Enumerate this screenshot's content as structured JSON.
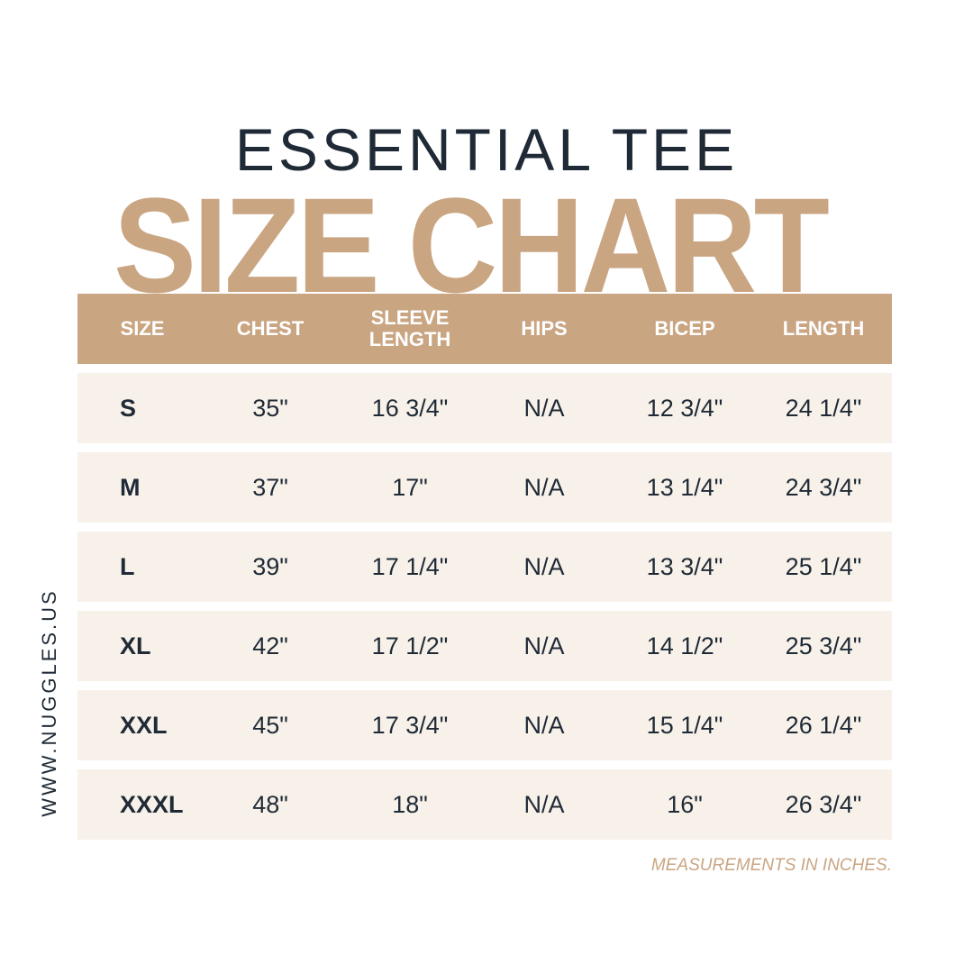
{
  "title": "ESSENTIAL TEE",
  "heading": "SIZE CHART",
  "columns": [
    "SIZE",
    "CHEST",
    "SLEEVE LENGTH",
    "HIPS",
    "BICEP",
    "LENGTH"
  ],
  "rows": [
    [
      "S",
      "35\"",
      "16 3/4\"",
      "N/A",
      "12 3/4\"",
      "24 1/4\""
    ],
    [
      "M",
      "37\"",
      "17\"",
      "N/A",
      "13 1/4\"",
      "24 3/4\""
    ],
    [
      "L",
      "39\"",
      "17 1/4\"",
      "N/A",
      "13 3/4\"",
      "25 1/4\""
    ],
    [
      "XL",
      "42\"",
      "17 1/2\"",
      "N/A",
      "14 1/2\"",
      "25 3/4\""
    ],
    [
      "XXL",
      "45\"",
      "17 3/4\"",
      "N/A",
      "15 1/4\"",
      "26 1/4\""
    ],
    [
      "XXXL",
      "48\"",
      "18\"",
      "N/A",
      "16\"",
      "26 3/4\""
    ]
  ],
  "website": "WWW.NUGGLES.US",
  "note": "MEASUREMENTS IN INCHES.",
  "colors": {
    "accent": "#c9a582",
    "row_bg": "#f7f1ea",
    "text": "#1f2a36"
  }
}
